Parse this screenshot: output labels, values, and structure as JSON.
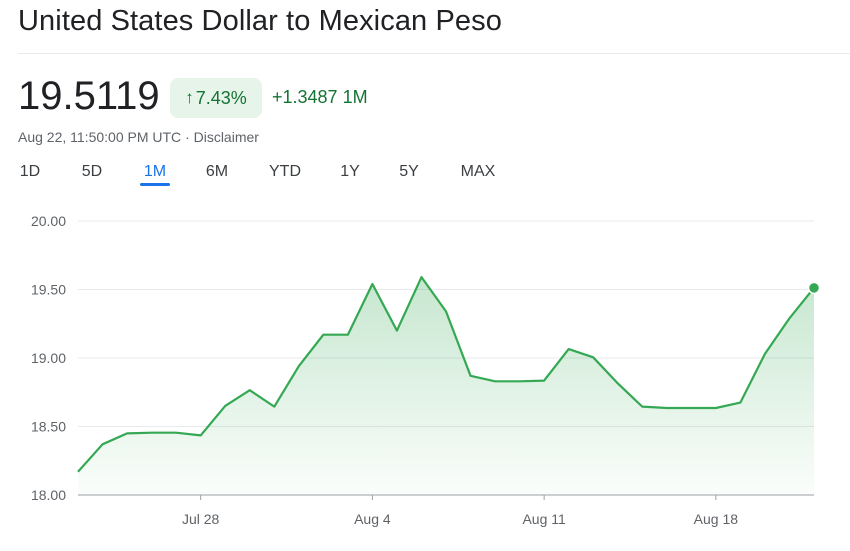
{
  "header": {
    "title": "United States Dollar to Mexican Peso",
    "price": "19.5119",
    "percent_change": "7.43%",
    "change_arrow": "↑",
    "abs_change": "+1.3487 1M",
    "timestamp": "Aug 22, 11:50:00 PM UTC · Disclaimer"
  },
  "range_tabs": [
    {
      "label": "1D",
      "active": false
    },
    {
      "label": "5D",
      "active": false
    },
    {
      "label": "1M",
      "active": true
    },
    {
      "label": "6M",
      "active": false
    },
    {
      "label": "YTD",
      "active": false
    },
    {
      "label": "1Y",
      "active": false
    },
    {
      "label": "5Y",
      "active": false
    },
    {
      "label": "MAX",
      "active": false
    }
  ],
  "colors": {
    "line": "#34a853",
    "positive_text": "#137333",
    "badge_bg": "#e6f4ea",
    "active_tab": "#1a73e8"
  },
  "chart_data": {
    "type": "area",
    "series": [
      {
        "x": [
          0,
          1,
          2,
          3,
          4,
          5,
          6,
          7,
          8,
          9,
          10,
          11,
          12,
          13,
          14,
          15,
          16,
          17,
          18,
          19,
          20,
          21,
          22,
          23,
          24,
          25,
          26,
          27,
          28,
          29,
          30
        ],
        "values": [
          18.17,
          18.37,
          18.45,
          18.455,
          18.455,
          18.435,
          18.65,
          18.765,
          18.645,
          18.94,
          19.17,
          19.17,
          19.54,
          19.2,
          19.59,
          19.34,
          18.87,
          18.83,
          18.83,
          18.835,
          19.065,
          19.005,
          18.815,
          18.645,
          18.635,
          18.635,
          18.635,
          18.675,
          19.03,
          19.29,
          19.5119
        ]
      }
    ],
    "x_tick_labels": [
      {
        "at": 5,
        "label": "Jul 28"
      },
      {
        "at": 12,
        "label": "Aug 4"
      },
      {
        "at": 19,
        "label": "Aug 11"
      },
      {
        "at": 26,
        "label": "Aug 18"
      }
    ],
    "y_ticks": [
      "20.00",
      "19.50",
      "19.00",
      "18.50",
      "18.00"
    ],
    "ylim": [
      18.0,
      20.0
    ],
    "grid": true,
    "xlabel": "",
    "ylabel": ""
  }
}
